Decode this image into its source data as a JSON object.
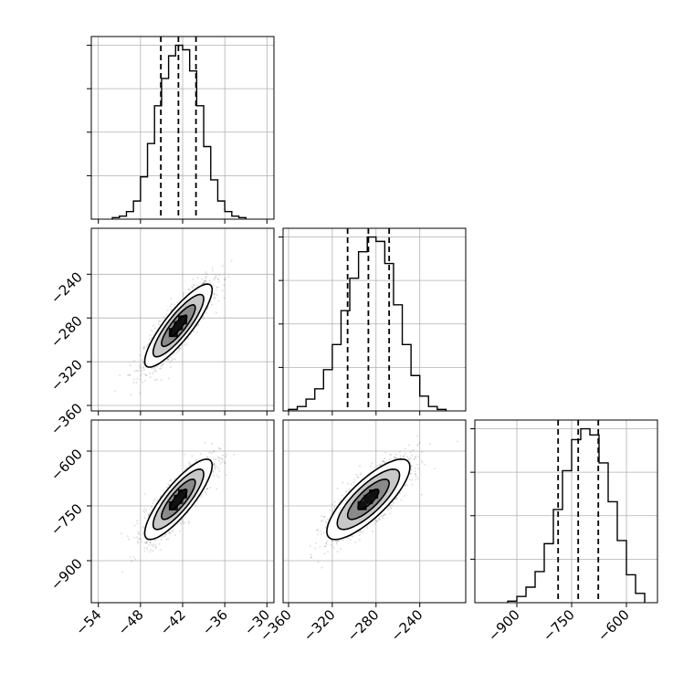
{
  "chart_data": {
    "type": "corner",
    "grid": true,
    "parameters": [
      {
        "axis_ticks": [
          -54,
          -48,
          -42,
          -36,
          -30
        ],
        "tick_labels": [
          "−54",
          "−48",
          "−42",
          "−36",
          "−30"
        ],
        "range": [
          -55,
          -29
        ],
        "mean": -42.6,
        "sd": 2.4,
        "quantiles": [
          -45.1,
          -42.6,
          -40.1
        ]
      },
      {
        "axis_ticks": [
          -360,
          -320,
          -280,
          -240
        ],
        "tick_labels": [
          "−360",
          "−320",
          "−280",
          "−240"
        ],
        "range": [
          -365,
          -198
        ],
        "mean": -287,
        "sd": 19,
        "quantiles": [
          -306,
          -287,
          -268
        ]
      },
      {
        "axis_ticks": [
          -900,
          -750,
          -600
        ],
        "tick_labels": [
          "−900",
          "−750",
          "−600"
        ],
        "range": [
          -1015,
          -515
        ],
        "mean": -732,
        "sd": 55,
        "quantiles": [
          -787,
          -732,
          -677
        ]
      }
    ],
    "histograms": [
      {
        "param": 0,
        "bin_edges": [
          -52.0,
          -51.0,
          -50.0,
          -49.0,
          -48.0,
          -47.0,
          -46.0,
          -45.0,
          -44.0,
          -43.0,
          -42.0,
          -41.0,
          -40.0,
          -39.0,
          -38.0,
          -37.0,
          -36.0,
          -35.0,
          -34.0,
          -33.0
        ],
        "counts": [
          1,
          2,
          5,
          12,
          28,
          50,
          75,
          93,
          108,
          115,
          112,
          98,
          75,
          48,
          26,
          12,
          5,
          2,
          1
        ]
      },
      {
        "param": 1,
        "bin_edges": [
          -360,
          -352,
          -344,
          -336,
          -328,
          -320,
          -312,
          -304,
          -296,
          -288,
          -280,
          -272,
          -264,
          -256,
          -248,
          -240,
          -232,
          -224,
          -216
        ],
        "counts": [
          1,
          3,
          8,
          15,
          28,
          45,
          68,
          90,
          108,
          118,
          115,
          100,
          72,
          45,
          24,
          10,
          3,
          1
        ]
      },
      {
        "param": 2,
        "bin_edges": [
          -925,
          -900,
          -875,
          -850,
          -825,
          -800,
          -775,
          -750,
          -725,
          -700,
          -675,
          -650,
          -625,
          -600,
          -575,
          -550
        ],
        "counts": [
          1,
          4,
          10,
          20,
          38,
          60,
          85,
          105,
          112,
          108,
          90,
          65,
          40,
          18,
          6
        ]
      }
    ],
    "pairs": [
      {
        "x": 0,
        "y": 1,
        "correlation": 0.86,
        "contour_levels_sigma": [
          0.5,
          1.0,
          1.5,
          2.0
        ]
      },
      {
        "x": 0,
        "y": 2,
        "correlation": 0.84,
        "contour_levels_sigma": [
          0.5,
          1.0,
          1.5,
          2.0
        ]
      },
      {
        "x": 1,
        "y": 2,
        "correlation": 0.8,
        "contour_levels_sigma": [
          0.5,
          1.0,
          1.5,
          2.0
        ]
      }
    ]
  }
}
